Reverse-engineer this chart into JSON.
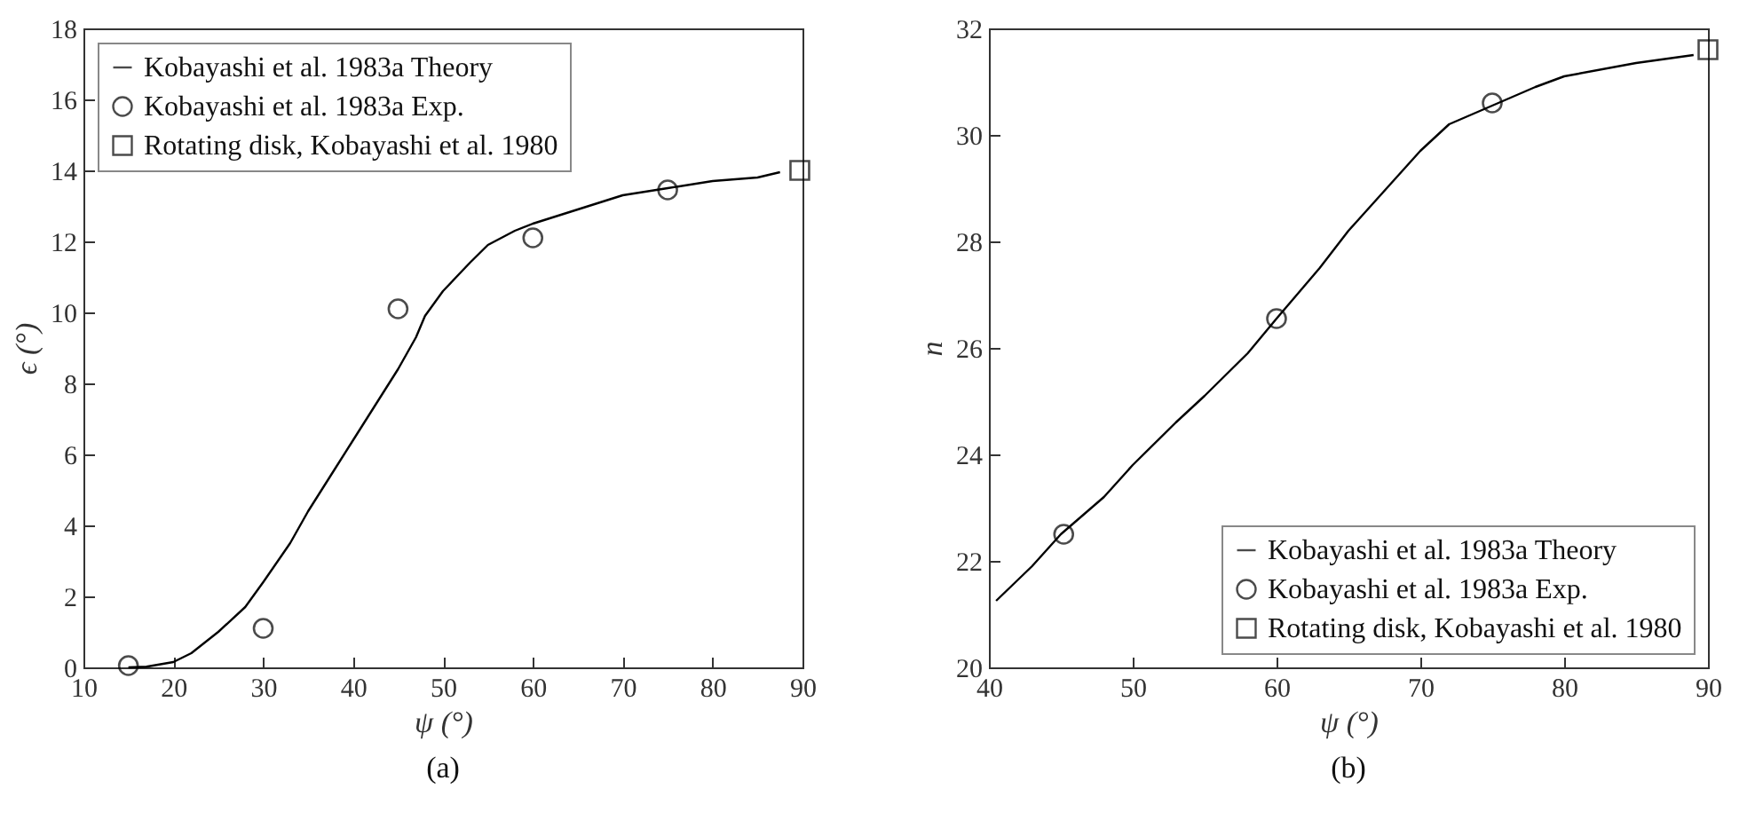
{
  "chart_data": [
    {
      "type": "line",
      "xlabel": "ψ (°)",
      "ylabel": "ϵ (°)",
      "annotations": [
        "(a)"
      ],
      "xlim": [
        10,
        90
      ],
      "ylim": [
        0,
        18
      ],
      "xticks": [
        10,
        20,
        30,
        40,
        50,
        60,
        70,
        80,
        90
      ],
      "yticks": [
        0,
        2,
        4,
        6,
        8,
        10,
        12,
        14,
        16,
        18
      ],
      "grid": false,
      "legend": "top left",
      "series": [
        {
          "name": "Kobayashi et al. 1983a Theory",
          "type": "line",
          "marker": "none",
          "color": "#000000",
          "x": [
            15,
            17,
            20,
            22,
            25,
            28,
            30,
            33,
            35,
            38,
            40,
            43,
            45,
            47,
            48,
            50,
            53,
            55,
            58,
            60,
            65,
            70,
            75,
            80,
            85,
            87.5
          ],
          "values": [
            0,
            0.02,
            0.15,
            0.4,
            1.0,
            1.7,
            2.4,
            3.5,
            4.4,
            5.6,
            6.4,
            7.6,
            8.4,
            9.3,
            9.9,
            10.6,
            11.4,
            11.9,
            12.3,
            12.5,
            12.9,
            13.3,
            13.5,
            13.7,
            13.8,
            13.95
          ]
        },
        {
          "name": "Kobayashi et al. 1983a Exp.",
          "type": "scatter",
          "marker": "circle",
          "color": "#000000",
          "x": [
            15,
            30,
            45,
            60,
            75
          ],
          "values": [
            0.05,
            1.1,
            10.1,
            12.1,
            13.45
          ]
        },
        {
          "name": "Rotating disk, Kobayashi et al. 1980",
          "type": "scatter",
          "marker": "square",
          "color": "#000000",
          "x": [
            89.7
          ],
          "values": [
            14.0
          ]
        }
      ]
    },
    {
      "type": "line",
      "xlabel": "ψ (°)",
      "ylabel": "n",
      "annotations": [
        "(b)"
      ],
      "xlim": [
        40,
        90
      ],
      "ylim": [
        20,
        32
      ],
      "xticks": [
        40,
        50,
        60,
        70,
        80,
        90
      ],
      "yticks": [
        20,
        22,
        24,
        26,
        28,
        30,
        32
      ],
      "grid": false,
      "legend": "bottom right",
      "series": [
        {
          "name": "Kobayashi et al. 1983a Theory",
          "type": "line",
          "marker": "none",
          "color": "#000000",
          "x": [
            40.5,
            43,
            45,
            48,
            50,
            53,
            55,
            58,
            60,
            63,
            65,
            68,
            70,
            72,
            75,
            78,
            80,
            85,
            89
          ],
          "values": [
            21.25,
            21.9,
            22.5,
            23.2,
            23.8,
            24.6,
            25.1,
            25.9,
            26.55,
            27.5,
            28.2,
            29.1,
            29.7,
            30.2,
            30.55,
            30.9,
            31.1,
            31.35,
            31.5
          ]
        },
        {
          "name": "Kobayashi et al. 1983a Exp.",
          "type": "scatter",
          "marker": "circle",
          "color": "#000000",
          "x": [
            45.2,
            60,
            75
          ],
          "values": [
            22.5,
            26.55,
            30.6
          ]
        },
        {
          "name": "Rotating disk, Kobayashi et al. 1980",
          "type": "scatter",
          "marker": "square",
          "color": "#000000",
          "x": [
            90
          ],
          "values": [
            31.6
          ]
        }
      ]
    }
  ]
}
